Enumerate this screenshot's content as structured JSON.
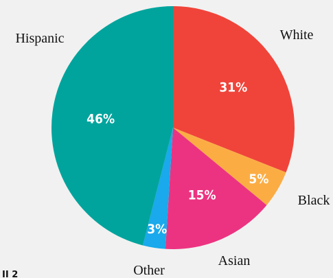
{
  "chart_data": {
    "type": "pie",
    "start_angle_deg": 0,
    "direction": "clockwise",
    "slices": [
      {
        "label": "White",
        "value": 31,
        "display": "31%",
        "color": "#f0443a"
      },
      {
        "label": "Black",
        "value": 5,
        "display": "5%",
        "color": "#fbad44"
      },
      {
        "label": "Asian",
        "value": 15,
        "display": "15%",
        "color": "#ec3381"
      },
      {
        "label": "Other",
        "value": 3,
        "display": "3%",
        "color": "#19a9ec"
      },
      {
        "label": "Hispanic",
        "value": 46,
        "display": "46%",
        "color": "#00a49d"
      }
    ]
  },
  "corner_mark": "II 2"
}
